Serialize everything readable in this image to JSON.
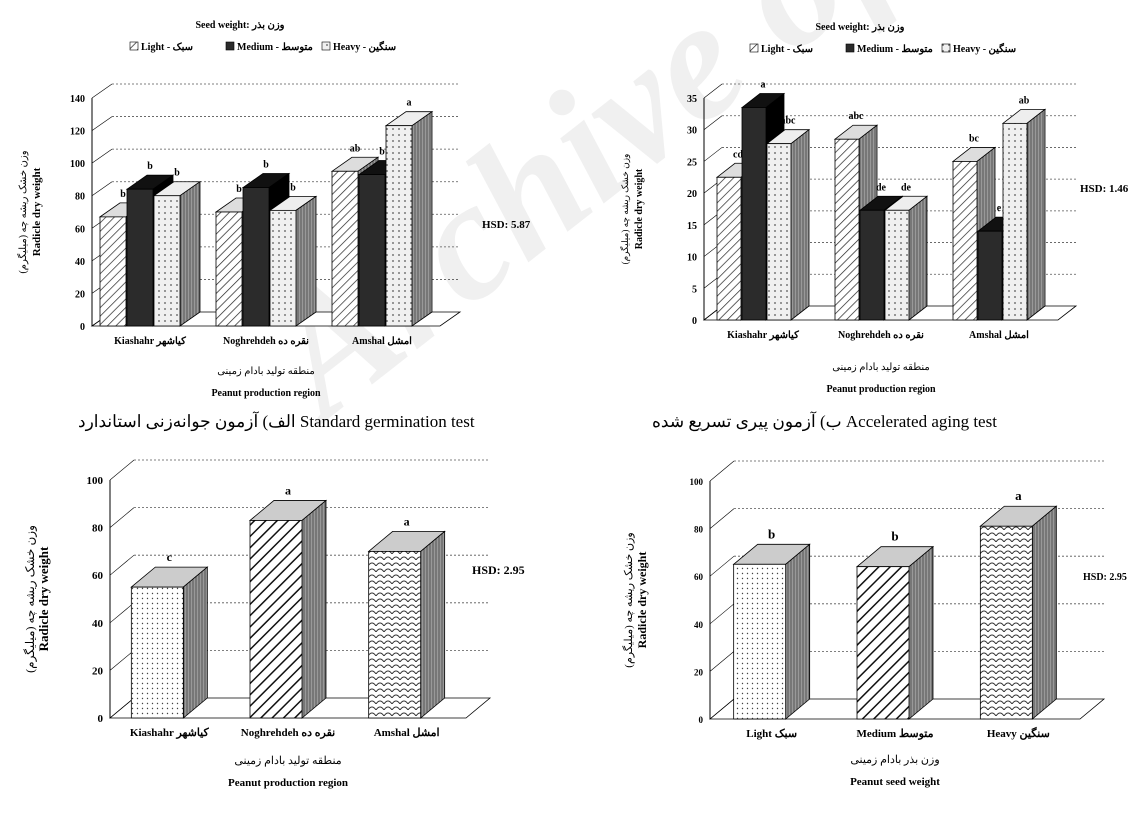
{
  "watermark": "Archive of SID",
  "captions": {
    "a": "الف) آزمون جوانه‌زنی استاندارد Standard germination test",
    "b": "ب) آزمون پیری تسریع شده Accelerated aging test"
  },
  "colors": {
    "light_fill": "#ffffff",
    "medium_fill": "#2b2b2b",
    "heavy_fill": "#f0f0f0",
    "grid": "#555555"
  },
  "chart_data": [
    {
      "type": "bar",
      "legend_title": "Seed weight: وزن بذر",
      "legend": [
        "Light - سبک",
        "Medium - متوسط",
        "Heavy - سنگین"
      ],
      "categories": [
        "Kiashahr کیاشهر",
        "Noghrehdeh نقره ده",
        "Amshal امشل"
      ],
      "series": [
        {
          "name": "Light - سبک",
          "values": [
            67,
            70,
            95
          ],
          "letters": [
            "b",
            "b",
            "ab"
          ]
        },
        {
          "name": "Medium - متوسط",
          "values": [
            84,
            85,
            93
          ],
          "letters": [
            "b",
            "b",
            "b"
          ]
        },
        {
          "name": "Heavy - سنگین",
          "values": [
            80,
            71,
            123
          ],
          "letters": [
            "b",
            "b",
            "a"
          ]
        }
      ],
      "ylabel_fa": "وزن خشک ریشه چه (میلیگرم)",
      "ylabel": "Radicle dry weight",
      "xlabel_fa": "منطقه تولید بادام زمینی",
      "xlabel": "Peanut production region",
      "yticks": [
        "0",
        "20",
        "40",
        "60",
        "80",
        "100",
        "120",
        "140"
      ],
      "ylim": [
        0,
        140
      ],
      "hsd": "HSD: 5.87",
      "legend_position": "top"
    },
    {
      "type": "bar",
      "legend_title": "Seed weight: وزن بذر",
      "legend": [
        "Light - سبک",
        "Medium - متوسط",
        "Heavy - سنگین"
      ],
      "categories": [
        "Kiashahr کیاشهر",
        "Noghrehdeh نقره ده",
        "Amshal امشل"
      ],
      "series": [
        {
          "name": "Light - سبک",
          "values": [
            22.5,
            28.5,
            25
          ],
          "letters": [
            "cd",
            "abc",
            "bc"
          ]
        },
        {
          "name": "Medium - متوسط",
          "values": [
            33.5,
            17.3,
            14
          ],
          "letters": [
            "a",
            "de",
            "e"
          ]
        },
        {
          "name": "Heavy - سنگین",
          "values": [
            27.8,
            17.3,
            31
          ],
          "letters": [
            "abc",
            "de",
            "ab"
          ]
        }
      ],
      "ylabel_fa": "وزن خشک ریشه چه (میلیگرم)",
      "ylabel": "Radicle dry weight",
      "xlabel_fa": "منطقه تولید بادام زمینی",
      "xlabel": "Peanut production region",
      "yticks": [
        "0",
        "5",
        "10",
        "15",
        "20",
        "25",
        "30",
        "35"
      ],
      "ylim": [
        0,
        35
      ],
      "hsd": "HSD: 1.46",
      "legend_position": "top"
    },
    {
      "type": "bar",
      "categories": [
        "Kiashahr کیاشهر",
        "Noghrehdeh نقره ده",
        "Amshal امشل"
      ],
      "values": [
        55,
        83,
        70
      ],
      "letters": [
        "c",
        "a",
        "a"
      ],
      "ylabel_fa": "وزن خشک ریشه چه (میلیگرم)",
      "ylabel": "Radicle dry weight",
      "xlabel_fa": "منطقه تولید بادام زمینی",
      "xlabel": "Peanut production region",
      "yticks": [
        "0",
        "20",
        "40",
        "60",
        "80",
        "100"
      ],
      "ylim": [
        0,
        100
      ],
      "hsd": "HSD: 2.95"
    },
    {
      "type": "bar",
      "categories": [
        "Light سبک",
        "Medium متوسط",
        "Heavy سنگین"
      ],
      "values": [
        65,
        64,
        81
      ],
      "letters": [
        "b",
        "b",
        "a"
      ],
      "ylabel_fa": "وزن خشک ریشه چه (میلیگرم)",
      "ylabel": "Radicle dry weight",
      "xlabel_fa": "وزن بذر بادام زمینی",
      "xlabel": "Peanut seed weight",
      "yticks": [
        "0",
        "20",
        "40",
        "60",
        "80",
        "100"
      ],
      "ylim": [
        0,
        100
      ],
      "hsd": "HSD: 2.95"
    }
  ]
}
